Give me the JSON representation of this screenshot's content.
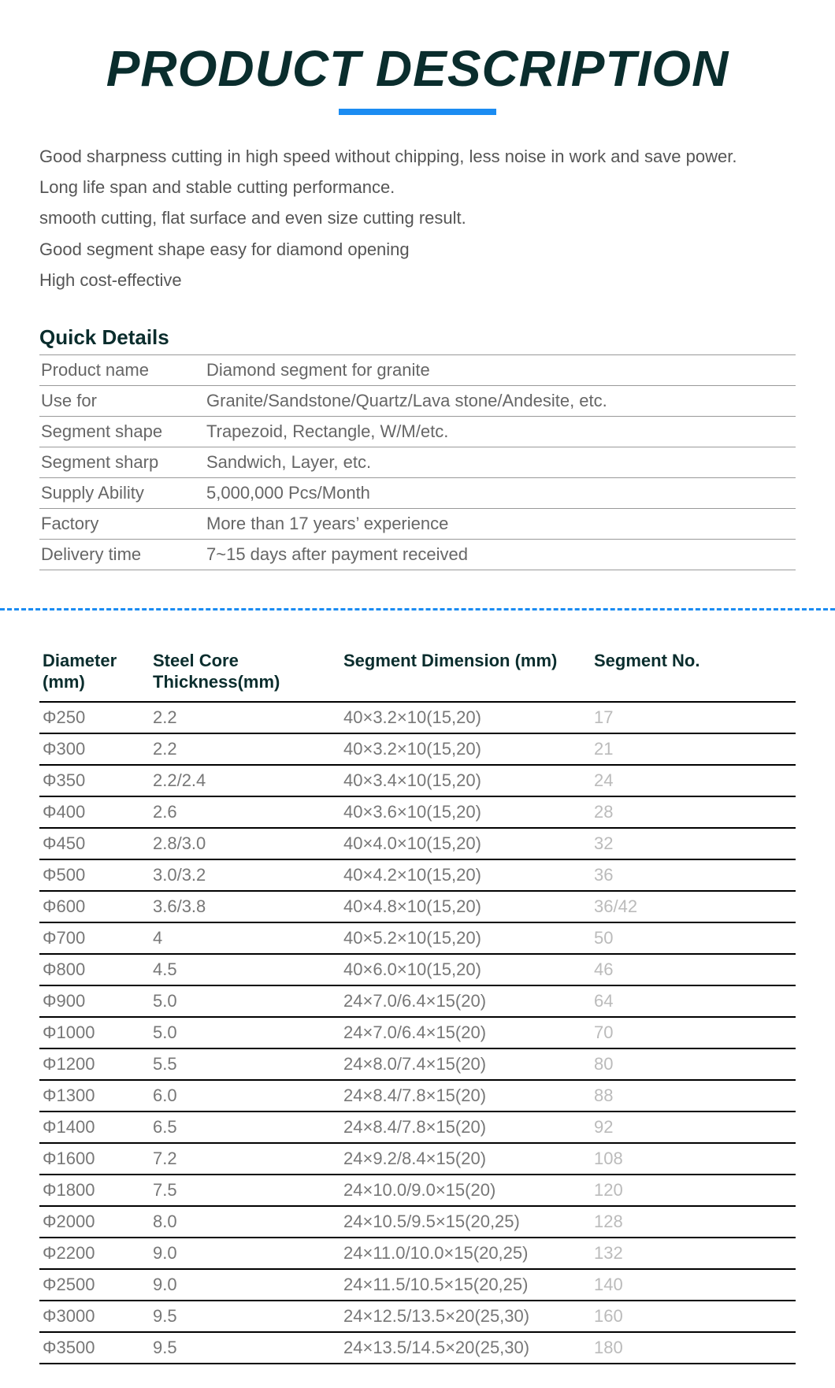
{
  "colors": {
    "title": "#0a2d2d",
    "underline": "#1b8cf2",
    "heading": "#0a2d2d",
    "divider": "#1b8cf2",
    "specHeader": "#0a2d2d"
  },
  "title": "PRODUCT DESCRIPTION",
  "features": [
    "Good sharpness cutting in high speed without chipping, less noise in work and save power.",
    "Long life span and stable cutting performance.",
    "smooth cutting, flat surface and even size cutting result.",
    "Good segment shape easy for diamond opening",
    "High cost-effective"
  ],
  "quickDetails": {
    "heading": "Quick Details",
    "rows": [
      {
        "label": "Product name",
        "value": "Diamond segment for granite"
      },
      {
        "label": "Use for",
        "value": "Granite/Sandstone/Quartz/Lava stone/Andesite, etc."
      },
      {
        "label": "Segment shape",
        "value": "Trapezoid, Rectangle, W/M/etc."
      },
      {
        "label": "Segment sharp",
        "value": "Sandwich, Layer, etc."
      },
      {
        "label": "Supply Ability",
        "value": "5,000,000 Pcs/Month"
      },
      {
        "label": "Factory",
        "value": "More than 17 years’ experience"
      },
      {
        "label": "Delivery time",
        "value": "7~15 days after payment received"
      }
    ]
  },
  "specTable": {
    "headers": {
      "diameter": "Diameter (mm)",
      "thickness": "Steel Core Thickness(mm)",
      "dimension": "Segment Dimension  (mm)",
      "segno": "Segment No."
    },
    "rows": [
      {
        "diameter": "Φ250",
        "thickness": "2.2",
        "dimension": "40×3.2×10(15,20)",
        "segno": "17"
      },
      {
        "diameter": "Φ300",
        "thickness": "2.2",
        "dimension": "40×3.2×10(15,20)",
        "segno": "21"
      },
      {
        "diameter": "Φ350",
        "thickness": "2.2/2.4",
        "dimension": "40×3.4×10(15,20)",
        "segno": "24"
      },
      {
        "diameter": "Φ400",
        "thickness": "2.6",
        "dimension": "40×3.6×10(15,20)",
        "segno": "28"
      },
      {
        "diameter": "Φ450",
        "thickness": "2.8/3.0",
        "dimension": "40×4.0×10(15,20)",
        "segno": "32"
      },
      {
        "diameter": "Φ500",
        "thickness": "3.0/3.2",
        "dimension": "40×4.2×10(15,20)",
        "segno": "36"
      },
      {
        "diameter": "Φ600",
        "thickness": "3.6/3.8",
        "dimension": "40×4.8×10(15,20)",
        "segno": "36/42"
      },
      {
        "diameter": "Φ700",
        "thickness": "4",
        "dimension": "40×5.2×10(15,20)",
        "segno": "50"
      },
      {
        "diameter": "Φ800",
        "thickness": "4.5",
        "dimension": "40×6.0×10(15,20)",
        "segno": "46"
      },
      {
        "diameter": "Φ900",
        "thickness": "5.0",
        "dimension": "24×7.0/6.4×15(20)",
        "segno": "64"
      },
      {
        "diameter": "Φ1000",
        "thickness": "5.0",
        "dimension": "24×7.0/6.4×15(20)",
        "segno": "70"
      },
      {
        "diameter": "Φ1200",
        "thickness": "5.5",
        "dimension": "24×8.0/7.4×15(20)",
        "segno": "80"
      },
      {
        "diameter": "Φ1300",
        "thickness": "6.0",
        "dimension": "24×8.4/7.8×15(20)",
        "segno": "88"
      },
      {
        "diameter": "Φ1400",
        "thickness": "6.5",
        "dimension": "24×8.4/7.8×15(20)",
        "segno": "92"
      },
      {
        "diameter": "Φ1600",
        "thickness": "7.2",
        "dimension": "24×9.2/8.4×15(20)",
        "segno": "108"
      },
      {
        "diameter": "Φ1800",
        "thickness": "7.5",
        "dimension": "24×10.0/9.0×15(20)",
        "segno": "120"
      },
      {
        "diameter": "Φ2000",
        "thickness": "8.0",
        "dimension": "24×10.5/9.5×15(20,25)",
        "segno": "128"
      },
      {
        "diameter": "Φ2200",
        "thickness": "9.0",
        "dimension": "24×11.0/10.0×15(20,25)",
        "segno": "132"
      },
      {
        "diameter": "Φ2500",
        "thickness": "9.0",
        "dimension": "24×11.5/10.5×15(20,25)",
        "segno": "140"
      },
      {
        "diameter": "Φ3000",
        "thickness": "9.5",
        "dimension": "24×12.5/13.5×20(25,30)",
        "segno": "160"
      },
      {
        "diameter": "Φ3500",
        "thickness": "9.5",
        "dimension": "24×13.5/14.5×20(25,30)",
        "segno": "180"
      }
    ]
  }
}
